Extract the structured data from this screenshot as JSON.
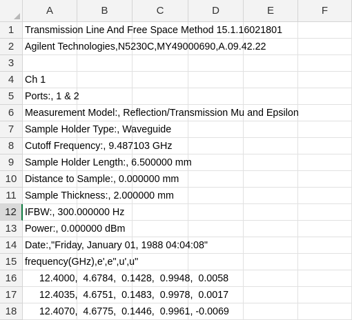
{
  "columns": [
    "A",
    "B",
    "C",
    "D",
    "E",
    "F"
  ],
  "active_row": 12,
  "rows": [
    {
      "num": "1",
      "text": "Transmission Line And Free Space Method 15.1.16021801"
    },
    {
      "num": "2",
      "text": "Agilent Technologies,N5230C,MY49000690,A.09.42.22"
    },
    {
      "num": "3",
      "text": ""
    },
    {
      "num": "4",
      "text": "Ch 1"
    },
    {
      "num": "5",
      "text": "Ports:, 1 & 2"
    },
    {
      "num": "6",
      "text": "Measurement Model:, Reflection/Transmission Mu and Epsilon"
    },
    {
      "num": "7",
      "text": "Sample Holder Type:, Waveguide"
    },
    {
      "num": "8",
      "text": "Cutoff Frequency:, 9.487103 GHz"
    },
    {
      "num": "9",
      "text": "Sample Holder Length:, 6.500000 mm"
    },
    {
      "num": "10",
      "text": "Distance to Sample:, 0.000000 mm"
    },
    {
      "num": "11",
      "text": "Sample Thickness:, 2.000000 mm"
    },
    {
      "num": "12",
      "text": "IFBW:, 300.000000 Hz"
    },
    {
      "num": "13",
      "text": "Power:, 0.000000 dBm"
    },
    {
      "num": "14",
      "text": "Date:,\"Friday, January 01, 1988 04:04:08\""
    },
    {
      "num": "15",
      "text": "frequency(GHz),e',e\",u',u\""
    },
    {
      "num": "16",
      "text": "      12.4000,  4.6784,  0.1428,  0.9948,  0.0058"
    },
    {
      "num": "17",
      "text": "      12.4035,  4.6751,  0.1483,  0.9978,  0.0017"
    },
    {
      "num": "18",
      "text": "      12.4070,  4.6775,  0.1446,  0.9961, -0.0069"
    }
  ]
}
